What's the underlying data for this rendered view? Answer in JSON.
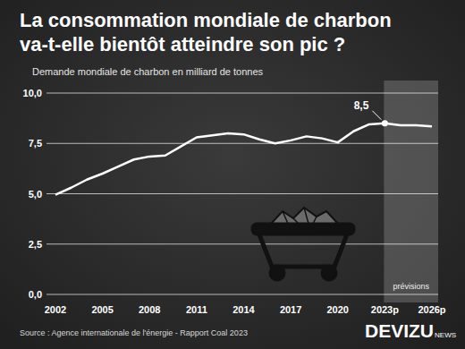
{
  "chart_data": {
    "type": "line",
    "title": "La consommation mondiale de charbon va-t-elle bientôt atteindre son pic ?",
    "subtitle": "Demande mondiale de charbon en milliard de tonnes",
    "source": "Source : Agence internationale de l'énergie - Rapport Coal 2023",
    "logo": {
      "name": "DEVIZU",
      "suffix": "NEWS"
    },
    "categories": [
      "2002",
      null,
      null,
      "2005",
      null,
      null,
      "2008",
      null,
      null,
      "2011",
      null,
      null,
      "2014",
      null,
      null,
      "2017",
      null,
      null,
      "2020",
      null,
      null,
      "2023p",
      null,
      null,
      "2026p"
    ],
    "values": [
      4.95,
      5.3,
      5.7,
      6.0,
      6.35,
      6.7,
      6.85,
      6.9,
      7.35,
      7.8,
      7.9,
      8.0,
      7.95,
      7.7,
      7.5,
      7.65,
      7.85,
      7.75,
      7.55,
      8.1,
      8.45,
      8.5,
      8.4,
      8.4,
      8.35
    ],
    "color": "#ffffff",
    "ylim": [
      0,
      10
    ],
    "yticks": [
      {
        "value": 0,
        "label": "0,0"
      },
      {
        "value": 2.5,
        "label": "2,5"
      },
      {
        "value": 5,
        "label": "5,0"
      },
      {
        "value": 7.5,
        "label": "7,5"
      },
      {
        "value": 10,
        "label": "10,0"
      }
    ],
    "grid": true,
    "shaded_region": {
      "label": "prévisions",
      "start": "2023p"
    },
    "annotations": [
      {
        "text": "8,5",
        "category": "2023p",
        "value": 8.5
      }
    ]
  }
}
